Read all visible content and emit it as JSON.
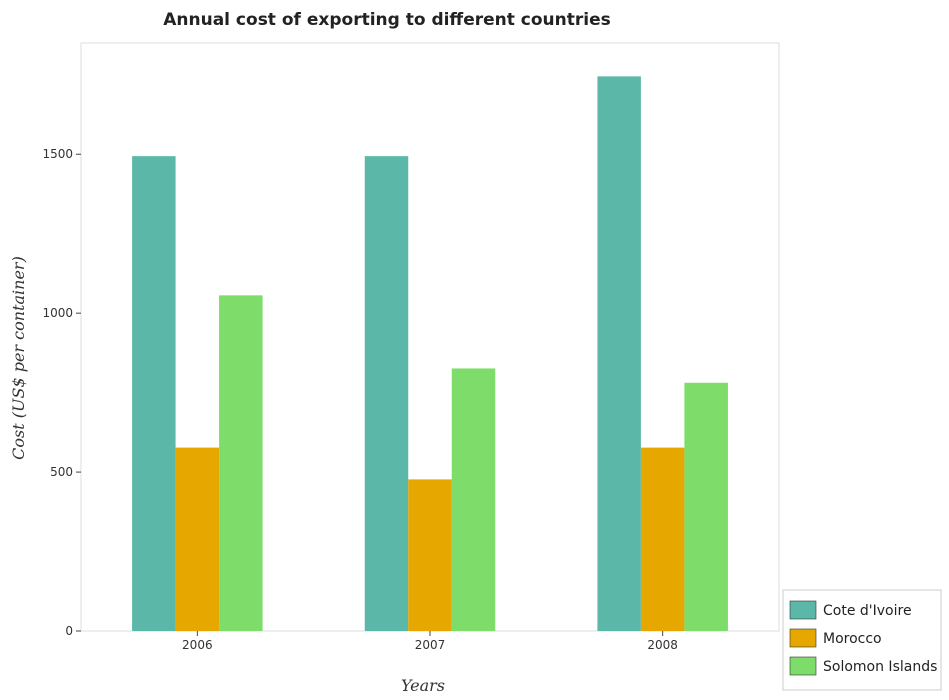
{
  "chart_data": {
    "type": "bar",
    "title": "Annual cost of exporting to different countries",
    "xlabel": "Years",
    "ylabel": "Cost (US$ per container)",
    "categories": [
      "2006",
      "2007",
      "2008"
    ],
    "ylim": [
      0,
      1850
    ],
    "yticks": [
      0,
      500,
      1000,
      1500
    ],
    "series": [
      {
        "name": "Cote d'Ivoire",
        "color": "#5bb8a9",
        "values": [
          1494,
          1494,
          1745
        ]
      },
      {
        "name": "Morocco",
        "color": "#e6a700",
        "values": [
          577,
          477,
          577
        ]
      },
      {
        "name": "Solomon Islands",
        "color": "#7ddc6a",
        "values": [
          1056,
          826,
          781
        ]
      }
    ],
    "legend_position": "bottom-right",
    "grid": false
  }
}
